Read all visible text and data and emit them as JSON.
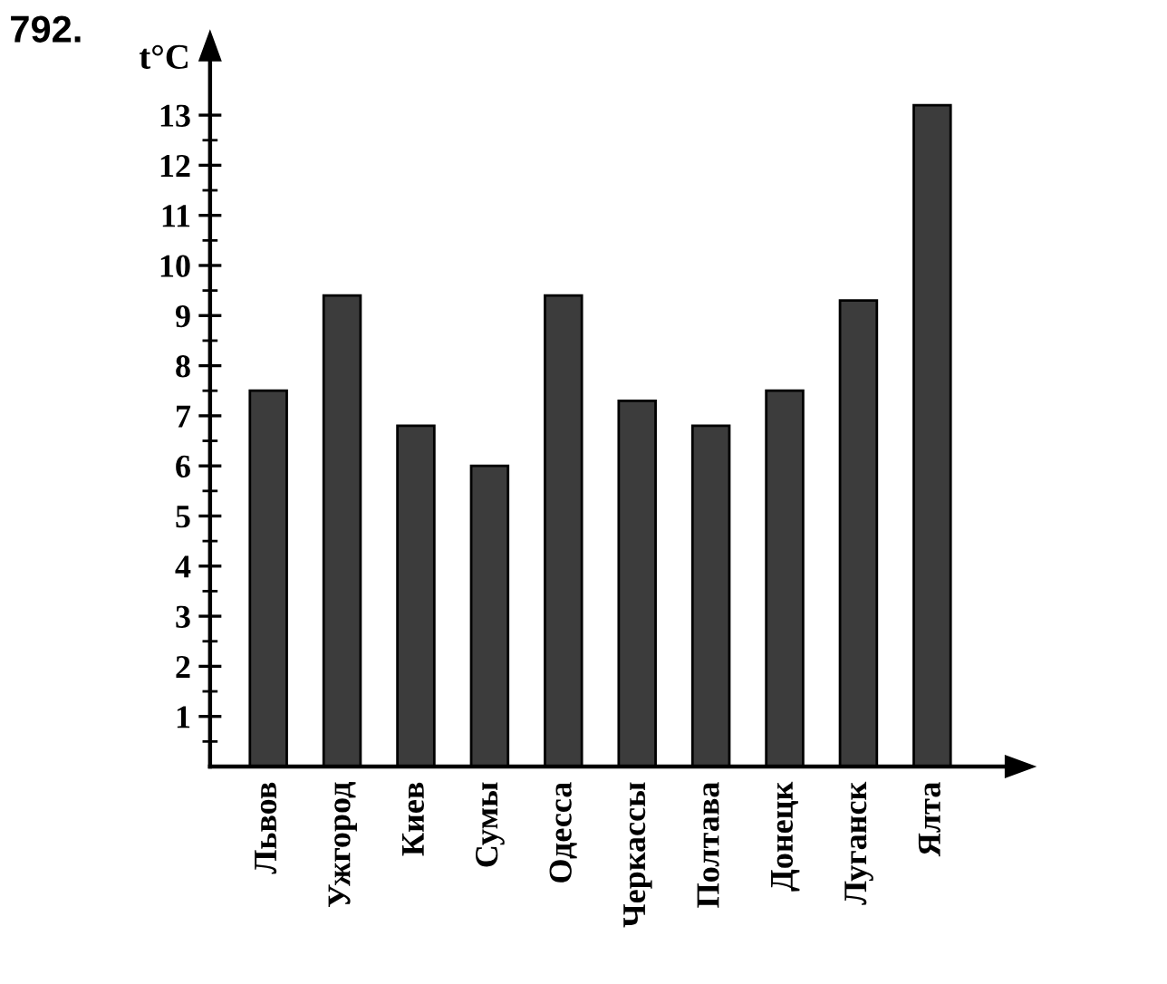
{
  "chart_data": {
    "type": "bar",
    "title": "792.",
    "ylabel": "t°C",
    "categories": [
      "Львов",
      "Ужгород",
      "Киев",
      "Сумы",
      "Одесса",
      "Черкассы",
      "Полтава",
      "Донецк",
      "Луганск",
      "Ялта"
    ],
    "values": [
      7.5,
      9.4,
      6.8,
      6.0,
      9.4,
      7.3,
      6.8,
      7.5,
      9.3,
      13.2
    ],
    "color": "#3c3c3c",
    "ylim": [
      0,
      14.1
    ],
    "yticks": [
      {
        "value": 0.5,
        "label": null
      },
      1,
      {
        "value": 1.5,
        "label": null
      },
      2,
      {
        "value": 2.5,
        "label": null
      },
      3,
      {
        "value": 3.5,
        "label": null
      },
      4,
      {
        "value": 4.5,
        "label": null
      },
      5,
      {
        "value": 5.5,
        "label": null
      },
      6,
      {
        "value": 6.5,
        "label": null
      },
      7,
      {
        "value": 7.5,
        "label": null
      },
      8,
      {
        "value": 8.5,
        "label": null
      },
      9,
      {
        "value": 9.5,
        "label": null
      },
      10,
      {
        "value": 10.5,
        "label": null
      },
      11,
      {
        "value": 11.5,
        "label": null
      },
      12,
      {
        "value": 12.5,
        "label": null
      },
      13
    ]
  }
}
